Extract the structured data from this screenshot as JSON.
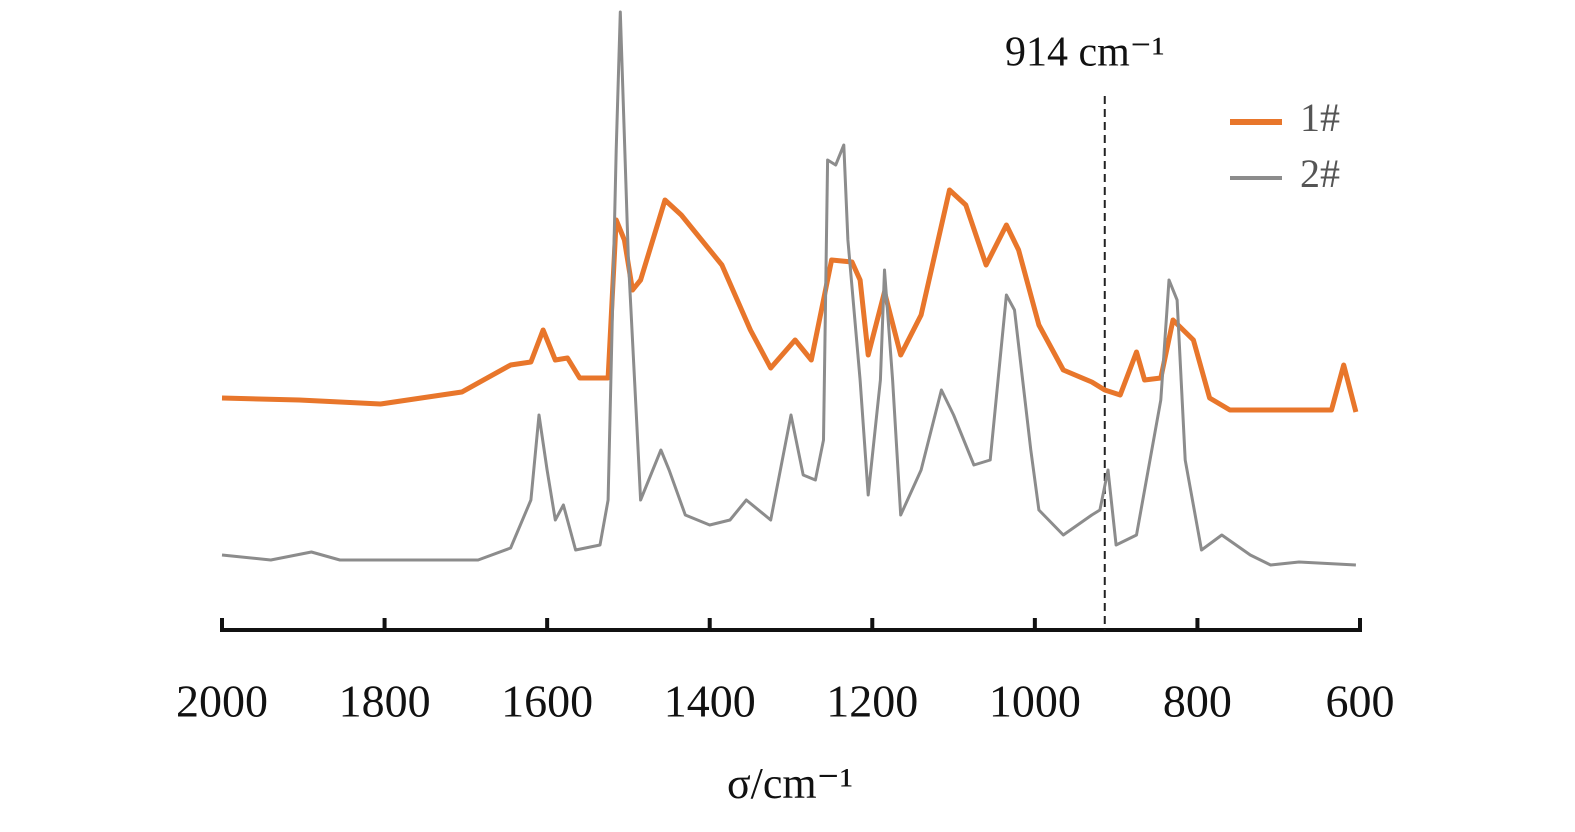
{
  "chart_data": {
    "type": "line",
    "xlabel": "σ/cm⁻¹",
    "xlim": [
      2000,
      600
    ],
    "xticks": [
      2000,
      1800,
      1600,
      1400,
      1200,
      1000,
      800,
      600
    ],
    "ylim": [
      0,
      62
    ],
    "annotations": [
      {
        "text": "914 cm⁻¹",
        "x": 914
      }
    ],
    "series": [
      {
        "name": "1#",
        "color": "#e8762b",
        "width": 5,
        "x": [
          2000,
          1905,
          1805,
          1705,
          1645,
          1620,
          1605,
          1590,
          1575,
          1560,
          1525,
          1515,
          1505,
          1495,
          1485,
          1455,
          1435,
          1385,
          1350,
          1325,
          1295,
          1275,
          1260,
          1250,
          1225,
          1215,
          1205,
          1185,
          1165,
          1140,
          1105,
          1085,
          1060,
          1035,
          1020,
          995,
          965,
          930,
          914,
          895,
          875,
          865,
          845,
          830,
          805,
          785,
          760,
          635,
          620,
          605
        ],
        "values": [
          23.2,
          23.0,
          22.6,
          23.8,
          26.5,
          26.8,
          30.0,
          27.0,
          27.2,
          25.2,
          25.2,
          41.0,
          39.0,
          34.0,
          35.0,
          43.0,
          41.5,
          36.5,
          30.0,
          26.2,
          29.0,
          27.0,
          33.0,
          37.0,
          36.8,
          35.0,
          27.5,
          33.8,
          27.5,
          31.5,
          44.0,
          42.5,
          36.5,
          40.5,
          38.0,
          30.5,
          26.0,
          24.8,
          24.0,
          23.5,
          27.8,
          25.0,
          25.2,
          31.0,
          29.0,
          23.2,
          22.0,
          22.0,
          26.5,
          21.8
        ]
      },
      {
        "name": "2#",
        "color": "#8c8c8c",
        "width": 3,
        "x": [
          2000,
          1940,
          1890,
          1855,
          1685,
          1645,
          1620,
          1610,
          1600,
          1590,
          1580,
          1565,
          1535,
          1525,
          1515,
          1510,
          1500,
          1490,
          1485,
          1460,
          1450,
          1430,
          1400,
          1375,
          1355,
          1325,
          1300,
          1285,
          1270,
          1260,
          1255,
          1245,
          1235,
          1230,
          1215,
          1205,
          1190,
          1185,
          1175,
          1165,
          1140,
          1115,
          1100,
          1075,
          1055,
          1035,
          1025,
          1005,
          995,
          965,
          930,
          920,
          910,
          900,
          875,
          845,
          835,
          825,
          815,
          795,
          770,
          735,
          710,
          675,
          605
        ],
        "values": [
          7.5,
          7.0,
          7.8,
          7.0,
          7.0,
          8.2,
          13.0,
          21.5,
          16.0,
          11.0,
          12.5,
          8.0,
          8.5,
          13.0,
          48.0,
          61.8,
          37.0,
          21.0,
          13.0,
          18.0,
          16.0,
          11.5,
          10.5,
          11.0,
          13.0,
          11.0,
          21.5,
          15.5,
          15.0,
          19.0,
          47.0,
          46.5,
          48.5,
          39.0,
          25.0,
          13.5,
          25.0,
          36.0,
          25.0,
          11.5,
          16.0,
          24.0,
          21.5,
          16.5,
          17.0,
          33.5,
          32.0,
          18.0,
          12.0,
          9.5,
          11.5,
          12.0,
          16.0,
          8.5,
          9.5,
          23.0,
          35.0,
          33.0,
          17.0,
          8.0,
          9.5,
          7.5,
          6.5,
          6.8,
          6.5
        ]
      }
    ],
    "legend": "upper right"
  }
}
